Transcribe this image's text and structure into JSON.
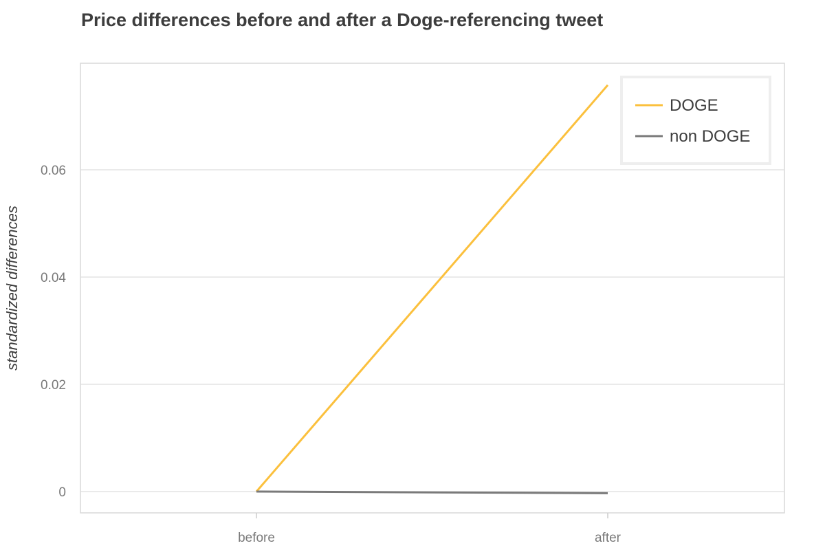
{
  "chart_data": {
    "type": "line",
    "title": "Price differences before and after a Doge-referencing tweet",
    "xlabel": "",
    "ylabel": "standardized differences",
    "categories": [
      "before",
      "after"
    ],
    "yticks": [
      0,
      0.02,
      0.04,
      0.06
    ],
    "ytick_labels": [
      "0",
      "0.02",
      "0.04",
      "0.06"
    ],
    "ylim": [
      -0.004,
      0.08
    ],
    "grid": true,
    "legend_position": "top-right",
    "series": [
      {
        "name": "DOGE",
        "color": "#fbc03d",
        "values": [
          0,
          0.0758
        ]
      },
      {
        "name": "non DOGE",
        "color": "#7a7a7a",
        "values": [
          0,
          -0.0003
        ]
      }
    ]
  }
}
